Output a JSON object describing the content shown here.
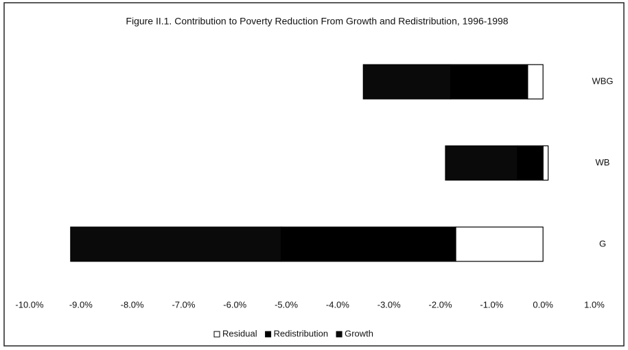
{
  "chart_data": {
    "type": "stacked_barh",
    "title": "Figure II.1. Contribution to Poverty Reduction From Growth and Redistribution, 1996-1998",
    "categories": [
      "WBG",
      "WB",
      "G"
    ],
    "series": [
      {
        "name": "Residual",
        "color": "#ffffff",
        "values": [
          -0.3,
          0.1,
          -1.7
        ]
      },
      {
        "name": "Redistribution",
        "color": "#000000",
        "values": [
          -1.5,
          -0.5,
          -3.4
        ]
      },
      {
        "name": "Growth",
        "color": "#0a0a0a",
        "values": [
          -1.7,
          -1.4,
          -4.1
        ]
      }
    ],
    "xlim": [
      -10,
      1
    ],
    "xticks": [
      {
        "value": -10,
        "label": "-10.0%"
      },
      {
        "value": -9,
        "label": "-9.0%"
      },
      {
        "value": -8,
        "label": "-8.0%"
      },
      {
        "value": -7,
        "label": "-7.0%"
      },
      {
        "value": -6,
        "label": "-6.0%"
      },
      {
        "value": -5,
        "label": "-5.0%"
      },
      {
        "value": -4,
        "label": "-4.0%"
      },
      {
        "value": -3,
        "label": "-3.0%"
      },
      {
        "value": -2,
        "label": "-2.0%"
      },
      {
        "value": -1,
        "label": "-1.0%"
      },
      {
        "value": 0,
        "label": "0.0%"
      },
      {
        "value": 1,
        "label": "1.0%"
      }
    ],
    "grid": false,
    "legend": "bottom"
  }
}
